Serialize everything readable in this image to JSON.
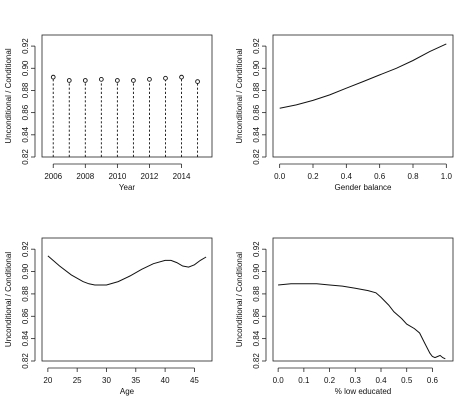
{
  "chart_data": [
    {
      "type": "line",
      "plot_style": "vertical dashed stems with open circles",
      "xlabel": "Year",
      "ylabel": "Unconditional / Conditional",
      "xlim": [
        2005.3,
        2015.9
      ],
      "ylim": [
        0.82,
        0.93
      ],
      "xticks": [
        2006,
        2008,
        2010,
        2012,
        2014
      ],
      "yticks": [
        0.82,
        0.84,
        0.86,
        0.88,
        0.9,
        0.92
      ],
      "x": [
        2006,
        2007,
        2008,
        2009,
        2010,
        2011,
        2012,
        2013,
        2014,
        2015
      ],
      "y": [
        0.892,
        0.889,
        0.889,
        0.89,
        0.889,
        0.889,
        0.89,
        0.891,
        0.892,
        0.888
      ]
    },
    {
      "type": "line",
      "xlabel": "Gender balance",
      "ylabel": "Unconditional / Conditional",
      "xlim": [
        -0.04,
        1.04
      ],
      "ylim": [
        0.82,
        0.93
      ],
      "xticks": [
        0.0,
        0.2,
        0.4,
        0.6,
        0.8,
        1.0
      ],
      "yticks": [
        0.82,
        0.84,
        0.86,
        0.88,
        0.9,
        0.92
      ],
      "x": [
        0.0,
        0.1,
        0.2,
        0.3,
        0.4,
        0.5,
        0.6,
        0.7,
        0.8,
        0.9,
        1.0
      ],
      "y": [
        0.864,
        0.867,
        0.871,
        0.876,
        0.882,
        0.888,
        0.894,
        0.9,
        0.907,
        0.915,
        0.922
      ]
    },
    {
      "type": "line",
      "xlabel": "Age",
      "ylabel": "Unconditional / Conditional",
      "xlim": [
        19.0,
        48.0
      ],
      "ylim": [
        0.82,
        0.93
      ],
      "xticks": [
        20,
        25,
        30,
        35,
        40,
        45
      ],
      "yticks": [
        0.82,
        0.84,
        0.86,
        0.88,
        0.9,
        0.92
      ],
      "x": [
        20,
        22,
        24,
        26,
        27,
        28,
        29,
        30,
        32,
        34,
        36,
        38,
        40,
        41,
        42,
        43,
        44,
        45,
        46,
        47
      ],
      "y": [
        0.914,
        0.905,
        0.897,
        0.891,
        0.889,
        0.888,
        0.888,
        0.888,
        0.891,
        0.896,
        0.902,
        0.907,
        0.91,
        0.91,
        0.908,
        0.905,
        0.904,
        0.906,
        0.91,
        0.913
      ]
    },
    {
      "type": "line",
      "xlabel": "% low educated",
      "ylabel": "Unconditional / Conditional",
      "xlim": [
        -0.02,
        0.68
      ],
      "ylim": [
        0.82,
        0.93
      ],
      "xticks": [
        0.0,
        0.1,
        0.2,
        0.3,
        0.4,
        0.5,
        0.6
      ],
      "yticks": [
        0.82,
        0.84,
        0.86,
        0.88,
        0.9,
        0.92
      ],
      "x": [
        0.0,
        0.05,
        0.1,
        0.15,
        0.2,
        0.25,
        0.3,
        0.35,
        0.38,
        0.4,
        0.43,
        0.45,
        0.48,
        0.5,
        0.53,
        0.55,
        0.57,
        0.59,
        0.6,
        0.61,
        0.62,
        0.63,
        0.64,
        0.65
      ],
      "y": [
        0.888,
        0.889,
        0.889,
        0.889,
        0.888,
        0.887,
        0.885,
        0.883,
        0.881,
        0.877,
        0.87,
        0.864,
        0.858,
        0.853,
        0.849,
        0.845,
        0.836,
        0.827,
        0.824,
        0.823,
        0.824,
        0.825,
        0.823,
        0.822
      ]
    }
  ]
}
